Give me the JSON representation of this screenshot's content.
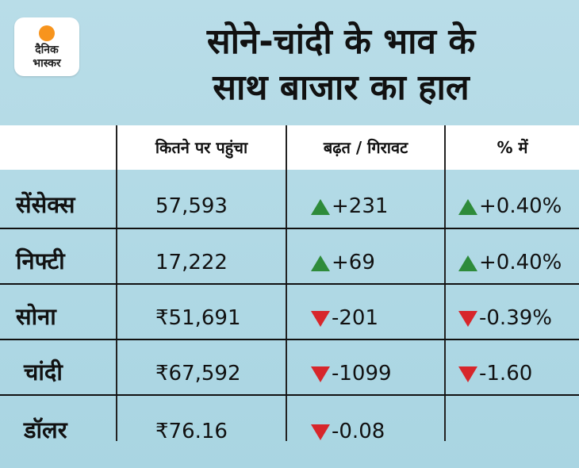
{
  "logo": {
    "line1": "दैनिक",
    "line2": "भास्कर"
  },
  "title": {
    "line1": "सोने-चांदी के भाव के",
    "line2": "साथ बाजार का हाल"
  },
  "headers": [
    "",
    "कितने पर पहुंचा",
    "बढ़त / गिरावट",
    "% में"
  ],
  "rows": [
    {
      "label": "सेंसेक्स",
      "value": "57,593",
      "change": "+231",
      "change_dir": "up",
      "pct": "+0.40%",
      "pct_dir": "up"
    },
    {
      "label": "निफ्टी",
      "value": "17,222",
      "change": "+69",
      "change_dir": "up",
      "pct": "+0.40%",
      "pct_dir": "up"
    },
    {
      "label": "सोना",
      "value": "₹51,691",
      "change": "-201",
      "change_dir": "down",
      "pct": "-0.39%",
      "pct_dir": "down"
    },
    {
      "label": "चांदी",
      "value": "₹67,592",
      "change": "-1099",
      "change_dir": "down",
      "pct": "-1.60",
      "pct_dir": "down"
    },
    {
      "label": "डॉलर",
      "value": "₹76.16",
      "change": "-0.08",
      "change_dir": "down",
      "pct": "",
      "pct_dir": ""
    }
  ],
  "colors": {
    "up": "#2e8b3a",
    "down": "#d7262b",
    "background": "#b9dde8"
  }
}
